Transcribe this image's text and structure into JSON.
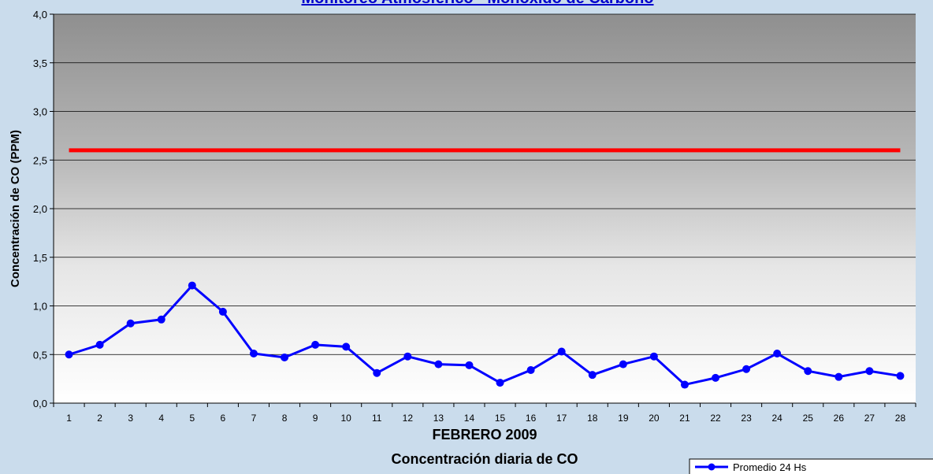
{
  "chart_data": {
    "type": "line",
    "title": "Monitoreo Atmosférico - Monóxido de Carbono",
    "x_label": "FEBRERO 2009",
    "subtitle": "Concentración diaria de CO",
    "y_label": "Concentración de CO (PPM)",
    "categories": [
      "1",
      "2",
      "3",
      "4",
      "5",
      "6",
      "7",
      "8",
      "9",
      "10",
      "11",
      "12",
      "13",
      "14",
      "15",
      "16",
      "17",
      "18",
      "19",
      "20",
      "21",
      "22",
      "23",
      "24",
      "25",
      "26",
      "27",
      "28"
    ],
    "series": [
      {
        "name": "Promedio 24 Hs",
        "color": "#0000ff",
        "values": [
          0.5,
          0.6,
          0.82,
          0.86,
          1.21,
          0.94,
          0.51,
          0.47,
          0.6,
          0.58,
          0.31,
          0.48,
          0.4,
          0.39,
          0.21,
          0.34,
          0.53,
          0.29,
          0.4,
          0.48,
          0.19,
          0.26,
          0.35,
          0.51,
          0.33,
          0.27,
          0.33,
          0.28
        ]
      }
    ],
    "reference_line": {
      "value": 2.6,
      "color": "#ff0000"
    },
    "ylim": [
      0,
      4
    ],
    "yticks": [
      {
        "value": 0,
        "label": "0,0"
      },
      {
        "value": 0.5,
        "label": "0,5"
      },
      {
        "value": 1,
        "label": "1,0"
      },
      {
        "value": 1.5,
        "label": "1,5"
      },
      {
        "value": 2,
        "label": "2,0"
      },
      {
        "value": 2.5,
        "label": "2,5"
      },
      {
        "value": 3,
        "label": "3,0"
      },
      {
        "value": 3.5,
        "label": "3,5"
      },
      {
        "value": 4,
        "label": "4,0"
      }
    ],
    "grid": true,
    "legend": "bottom-right"
  }
}
